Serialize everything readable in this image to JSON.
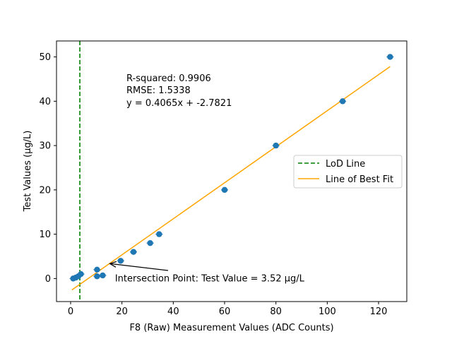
{
  "chart_data": {
    "type": "scatter",
    "title": "",
    "xlabel": "F8 (Raw) Measurement Values (ADC Counts)",
    "ylabel": "Test Values (µg/L)",
    "xlim": [
      -5.5,
      131
    ],
    "ylim": [
      -5.2,
      53.6
    ],
    "xticks": [
      0,
      20,
      40,
      60,
      80,
      100,
      120
    ],
    "yticks": [
      0,
      10,
      20,
      30,
      40,
      50
    ],
    "grid": false,
    "legend_position": "center-right",
    "colors": {
      "points": "#1f77b4",
      "best_fit": "#ffa500",
      "lod": "#008000"
    },
    "points": [
      {
        "x": 1,
        "y": 0
      },
      {
        "x": 2,
        "y": 0.2
      },
      {
        "x": 3,
        "y": 0.5
      },
      {
        "x": 4,
        "y": 1
      },
      {
        "x": 10.3,
        "y": 0.5
      },
      {
        "x": 10.3,
        "y": 2
      },
      {
        "x": 12.5,
        "y": 0.7
      },
      {
        "x": 19.5,
        "y": 4
      },
      {
        "x": 24.5,
        "y": 6
      },
      {
        "x": 31,
        "y": 8
      },
      {
        "x": 34.5,
        "y": 10
      },
      {
        "x": 60,
        "y": 20
      },
      {
        "x": 80,
        "y": 30
      },
      {
        "x": 106,
        "y": 40
      },
      {
        "x": 124.5,
        "y": 50
      }
    ],
    "best_fit": {
      "label": "Line of Best Fit",
      "slope": 0.4065,
      "intercept": -2.7821,
      "x_range": [
        0.5,
        124.5
      ]
    },
    "lod_line": {
      "label": "LoD Line",
      "x": 3.6
    },
    "annotations": {
      "r_squared": "R-squared: 0.9906",
      "rmse": "RMSE: 1.5338",
      "equation": "y = 0.4065x + -2.7821",
      "intersection": "Intersection Point: Test Value = 3.52 µg/L",
      "intersection_point": {
        "x": 15,
        "y": 3.52
      },
      "intersection_text_at": {
        "x": 19.5,
        "y": -0.3
      }
    }
  }
}
